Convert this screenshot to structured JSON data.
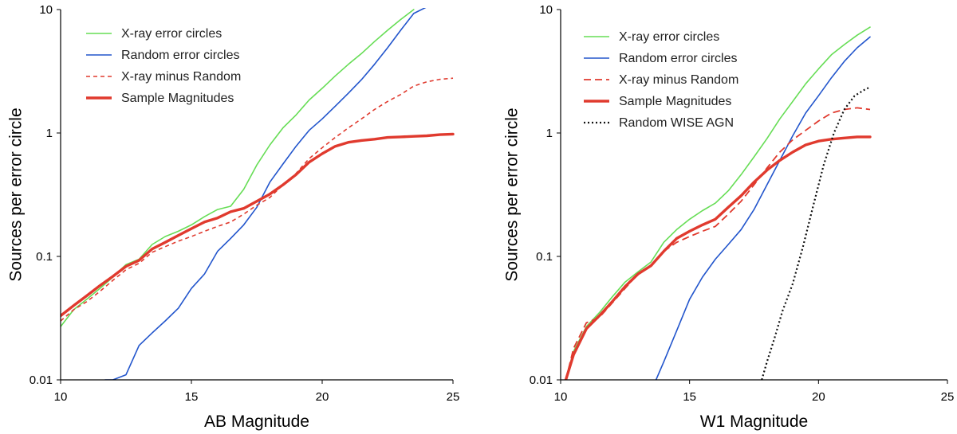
{
  "chart_data": [
    {
      "type": "line",
      "xlabel": "AB Magnitude",
      "ylabel": "Sources per error circle",
      "xlim": [
        10,
        25
      ],
      "ylim": [
        0.01,
        10
      ],
      "yscale": "log",
      "x_ticks": [
        10,
        15,
        20,
        25
      ],
      "y_ticks": [
        0.01,
        0.1,
        1,
        10
      ],
      "x_tick_labels": [
        "10",
        "15",
        "20",
        "25"
      ],
      "y_tick_labels": [
        "0.01",
        "0.1",
        "1",
        "10"
      ],
      "legend_position": "top-left",
      "series": [
        {
          "name": "X-ray error circles",
          "color": "#66dd55",
          "dash": "solid",
          "width": 1.6,
          "x": [
            10,
            10.5,
            11,
            11.5,
            12,
            12.5,
            13,
            13.5,
            14,
            14.5,
            15,
            15.5,
            16,
            16.5,
            17,
            17.5,
            18,
            18.5,
            19,
            19.5,
            20,
            20.5,
            21,
            21.5,
            22,
            22.5,
            23,
            23.5
          ],
          "y": [
            0.027,
            0.037,
            0.045,
            0.055,
            0.068,
            0.086,
            0.095,
            0.125,
            0.145,
            0.16,
            0.18,
            0.21,
            0.24,
            0.255,
            0.35,
            0.55,
            0.8,
            1.1,
            1.4,
            1.85,
            2.3,
            2.9,
            3.6,
            4.4,
            5.5,
            6.8,
            8.3,
            10
          ]
        },
        {
          "name": "Random error circles",
          "color": "#2255cc",
          "dash": "solid",
          "width": 1.6,
          "x": [
            11.7,
            12,
            12.5,
            13,
            13.5,
            14,
            14.5,
            15,
            15.5,
            16,
            16.5,
            17,
            17.5,
            18,
            18.5,
            19,
            19.5,
            20,
            20.5,
            21,
            21.5,
            22,
            22.5,
            23,
            23.5,
            24
          ],
          "y": [
            0.01,
            0.01,
            0.011,
            0.019,
            0.024,
            0.03,
            0.038,
            0.055,
            0.072,
            0.11,
            0.14,
            0.18,
            0.25,
            0.4,
            0.56,
            0.78,
            1.05,
            1.3,
            1.65,
            2.1,
            2.7,
            3.6,
            4.9,
            6.8,
            9.3,
            10.5
          ]
        },
        {
          "name": "X-ray minus Random",
          "color": "#e03a2e",
          "dash": "5,4",
          "width": 1.6,
          "x": [
            10,
            10.5,
            11,
            11.5,
            12,
            12.5,
            13,
            13.5,
            14,
            14.5,
            15,
            15.5,
            16,
            16.5,
            17,
            17.5,
            18,
            18.5,
            19,
            19.5,
            20,
            20.5,
            21,
            21.5,
            22,
            22.5,
            23,
            23.5,
            24,
            24.5,
            25
          ],
          "y": [
            0.03,
            0.037,
            0.043,
            0.052,
            0.064,
            0.078,
            0.088,
            0.108,
            0.12,
            0.133,
            0.145,
            0.16,
            0.175,
            0.19,
            0.22,
            0.26,
            0.3,
            0.38,
            0.47,
            0.62,
            0.76,
            0.92,
            1.1,
            1.3,
            1.55,
            1.8,
            2.05,
            2.4,
            2.6,
            2.72,
            2.78
          ]
        },
        {
          "name": "Sample Magnitudes",
          "color": "#e03a2e",
          "dash": "solid",
          "width": 3.4,
          "x": [
            10,
            10.5,
            11,
            11.5,
            12,
            12.5,
            13,
            13.5,
            14,
            14.5,
            15,
            15.5,
            16,
            16.5,
            17,
            17.5,
            18,
            18.5,
            19,
            19.5,
            20,
            20.5,
            21,
            21.5,
            22,
            22.5,
            23,
            23.5,
            24,
            24.5,
            25
          ],
          "y": [
            0.033,
            0.04,
            0.048,
            0.058,
            0.069,
            0.083,
            0.093,
            0.115,
            0.13,
            0.148,
            0.168,
            0.19,
            0.205,
            0.23,
            0.245,
            0.28,
            0.32,
            0.38,
            0.46,
            0.58,
            0.68,
            0.78,
            0.84,
            0.87,
            0.89,
            0.92,
            0.93,
            0.94,
            0.95,
            0.97,
            0.98
          ]
        }
      ]
    },
    {
      "type": "line",
      "xlabel": "W1 Magnitude",
      "ylabel": "Sources per error circle",
      "xlim": [
        10,
        25
      ],
      "ylim": [
        0.01,
        10
      ],
      "yscale": "log",
      "x_ticks": [
        10,
        15,
        20,
        25
      ],
      "y_ticks": [
        0.01,
        0.1,
        1,
        10
      ],
      "x_tick_labels": [
        "10",
        "15",
        "20",
        "25"
      ],
      "y_tick_labels": [
        "0.01",
        "0.1",
        "1",
        "10"
      ],
      "legend_position": "top-left",
      "series": [
        {
          "name": "X-ray error circles",
          "color": "#66dd55",
          "dash": "solid",
          "width": 1.6,
          "x": [
            10.2,
            10.5,
            11,
            11.5,
            12,
            12.5,
            13,
            13.5,
            14,
            14.5,
            15,
            15.5,
            16,
            16.5,
            17,
            17.5,
            18,
            18.5,
            19,
            19.5,
            20,
            20.5,
            21,
            21.5,
            22
          ],
          "y": [
            0.01,
            0.017,
            0.027,
            0.035,
            0.047,
            0.062,
            0.075,
            0.09,
            0.13,
            0.165,
            0.2,
            0.235,
            0.27,
            0.34,
            0.46,
            0.64,
            0.9,
            1.3,
            1.8,
            2.5,
            3.3,
            4.3,
            5.2,
            6.2,
            7.2
          ]
        },
        {
          "name": "Random error circles",
          "color": "#2255cc",
          "dash": "solid",
          "width": 1.6,
          "x": [
            13.7,
            14,
            14.5,
            15,
            15.5,
            16,
            16.5,
            17,
            17.5,
            18,
            18.5,
            19,
            19.5,
            20,
            20.5,
            21,
            21.5,
            22
          ],
          "y": [
            0.01,
            0.014,
            0.025,
            0.045,
            0.068,
            0.095,
            0.125,
            0.165,
            0.24,
            0.38,
            0.6,
            0.95,
            1.45,
            2.0,
            2.8,
            3.8,
            4.9,
            6.0
          ]
        },
        {
          "name": "X-ray minus Random",
          "color": "#e03a2e",
          "dash": "9,5",
          "width": 1.8,
          "x": [
            10.2,
            10.5,
            11,
            11.5,
            12,
            12.5,
            13,
            13.5,
            14,
            14.5,
            15,
            15.5,
            16,
            16.5,
            17,
            17.5,
            18,
            18.5,
            19,
            19.5,
            20,
            20.5,
            21,
            21.5,
            22
          ],
          "y": [
            0.01,
            0.018,
            0.029,
            0.032,
            0.042,
            0.055,
            0.072,
            0.085,
            0.11,
            0.13,
            0.145,
            0.16,
            0.175,
            0.22,
            0.28,
            0.38,
            0.52,
            0.7,
            0.88,
            1.05,
            1.25,
            1.45,
            1.55,
            1.6,
            1.55
          ]
        },
        {
          "name": "Sample Magnitudes",
          "color": "#e03a2e",
          "dash": "solid",
          "width": 3.4,
          "x": [
            10.2,
            10.5,
            11,
            11.5,
            12,
            12.5,
            13,
            13.5,
            14,
            14.5,
            15,
            15.5,
            16,
            16.5,
            17,
            17.5,
            18,
            18.5,
            19,
            19.5,
            20,
            20.5,
            21,
            21.5,
            22
          ],
          "y": [
            0.01,
            0.016,
            0.026,
            0.033,
            0.043,
            0.057,
            0.072,
            0.084,
            0.11,
            0.14,
            0.16,
            0.18,
            0.2,
            0.25,
            0.31,
            0.4,
            0.5,
            0.6,
            0.7,
            0.8,
            0.86,
            0.89,
            0.91,
            0.93,
            0.93
          ]
        },
        {
          "name": "Random WISE AGN",
          "color": "#111111",
          "dash": "2,3",
          "width": 2.2,
          "x": [
            17.8,
            18,
            18.3,
            18.6,
            19,
            19.4,
            19.8,
            20.2,
            20.6,
            21,
            21.4,
            21.8,
            22
          ],
          "y": [
            0.01,
            0.014,
            0.022,
            0.036,
            0.06,
            0.12,
            0.26,
            0.55,
            1.0,
            1.55,
            2.0,
            2.25,
            2.35
          ]
        }
      ]
    }
  ]
}
